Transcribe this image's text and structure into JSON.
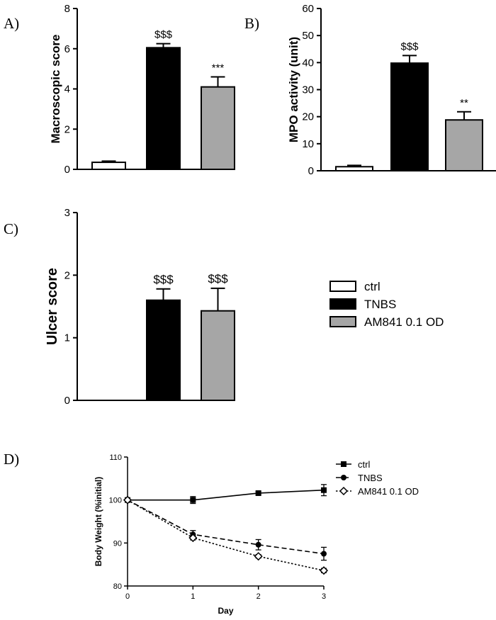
{
  "chart_data": [
    {
      "panel_label": "A)",
      "type": "bar",
      "categories": [
        "ctrl",
        "TNBS",
        "AM841 0.1 OD"
      ],
      "values": [
        0.35,
        6.05,
        4.1
      ],
      "errors": [
        0.06,
        0.2,
        0.5
      ],
      "annotations": [
        "",
        "$$$",
        "***"
      ],
      "ylabel": "Macroscopic score",
      "ylim": [
        0,
        8
      ],
      "yticks": [
        "0",
        "2",
        "4",
        "6",
        "8"
      ],
      "colors": [
        "#ffffff",
        "#000000",
        "#a6a6a6"
      ]
    },
    {
      "panel_label": "B)",
      "type": "bar",
      "categories": [
        "ctrl",
        "TNBS",
        "AM841 0.1 OD"
      ],
      "values": [
        1.5,
        39.8,
        18.8
      ],
      "errors": [
        0.5,
        2.8,
        3.0
      ],
      "annotations": [
        "",
        "$$$",
        "**"
      ],
      "ylabel": "MPO activity (unit)",
      "ylim": [
        0,
        60
      ],
      "yticks": [
        "0",
        "10",
        "20",
        "30",
        "40",
        "50",
        "60"
      ],
      "colors": [
        "#ffffff",
        "#000000",
        "#a6a6a6"
      ]
    },
    {
      "panel_label": "C)",
      "type": "bar",
      "categories": [
        "ctrl",
        "TNBS",
        "AM841 0.1 OD"
      ],
      "values": [
        0,
        1.6,
        1.43
      ],
      "errors": [
        0,
        0.18,
        0.36
      ],
      "annotations": [
        "",
        "$$$",
        "$$$"
      ],
      "ylabel": "Ulcer score",
      "ylim": [
        0,
        3
      ],
      "yticks": [
        "0",
        "1",
        "2",
        "3"
      ],
      "colors": [
        "#ffffff",
        "#000000",
        "#a6a6a6"
      ],
      "legend": [
        "ctrl",
        "TNBS",
        "AM841 0.1 OD"
      ]
    },
    {
      "panel_label": "D)",
      "type": "line",
      "x": [
        0,
        1,
        2,
        3
      ],
      "xlabel": "Day",
      "ylabel": "Body Weight (%initial)",
      "xlim": [
        0,
        3
      ],
      "ylim": [
        80,
        110
      ],
      "xticks": [
        "0",
        "1",
        "2",
        "3"
      ],
      "yticks": [
        "80",
        "90",
        "100",
        "110"
      ],
      "series": [
        {
          "name": "ctrl",
          "values": [
            100,
            100,
            101.6,
            102.3
          ],
          "errors": [
            0,
            0.8,
            0.4,
            1.3
          ],
          "marker": "square",
          "dash": "solid"
        },
        {
          "name": "TNBS",
          "values": [
            100,
            92.0,
            89.6,
            87.5
          ],
          "errors": [
            0,
            0.9,
            1.2,
            1.5
          ],
          "marker": "circle",
          "dash": "dashed"
        },
        {
          "name": "AM841 0.1 OD",
          "values": [
            100,
            91.2,
            86.9,
            83.6
          ],
          "errors": [
            0,
            0.5,
            0.4,
            0.5
          ],
          "marker": "diamond",
          "dash": "dotted"
        }
      ]
    }
  ]
}
